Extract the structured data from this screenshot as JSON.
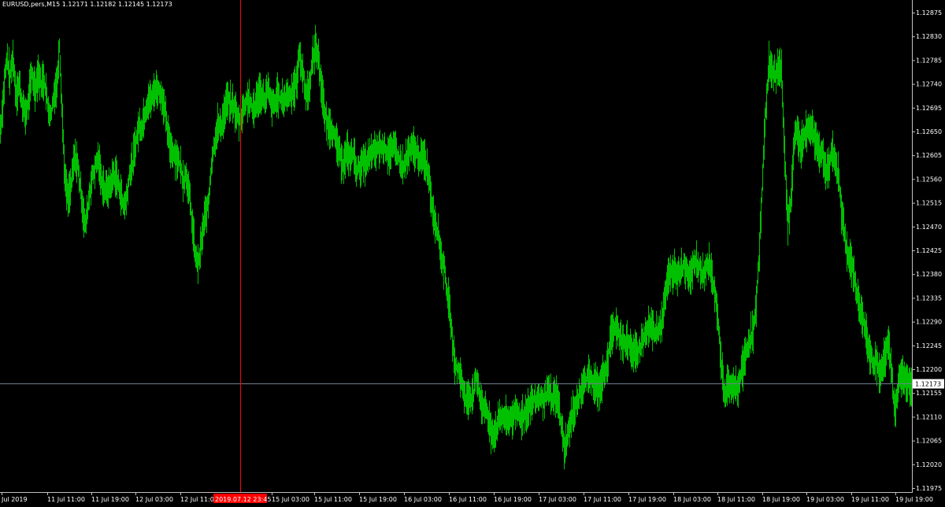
{
  "header": {
    "symbol": "EURUSD,pers,M15",
    "ohlc": "1.12171 1.12182 1.12145 1.12173"
  },
  "colors": {
    "background": "#000000",
    "bars": "#00c000",
    "axis": "#c0c0c0",
    "text": "#ffffff",
    "bid_line": "#708090",
    "crosshair": "#ff0000",
    "cross_label_bg": "#ff0000"
  },
  "chart_data": {
    "type": "line",
    "style": "ohlc-bars",
    "title": "EURUSD,pers,M15",
    "ylim": [
      1.11975,
      1.12898
    ],
    "y_ticks": [
      "1.12875",
      "1.12830",
      "1.12785",
      "1.12740",
      "1.12695",
      "1.12650",
      "1.12605",
      "1.12560",
      "1.12515",
      "1.12470",
      "1.12425",
      "1.12380",
      "1.12335",
      "1.12290",
      "1.12245",
      "1.12200",
      "1.12155",
      "1.12110",
      "1.12065",
      "1.12020",
      "1.11975"
    ],
    "x_ticks": [
      "Jul 2019",
      "11 Jul 11:00",
      "11 Jul 19:00",
      "12 Jul 03:00",
      "12 Jul 11:00",
      "2019.07.12 23:45",
      "15 Jul 03:00",
      "15 Jul 11:00",
      "15 Jul 19:00",
      "16 Jul 03:00",
      "16 Jul 11:00",
      "16 Jul 19:00",
      "17 Jul 03:00",
      "17 Jul 11:00",
      "17 Jul 19:00",
      "18 Jul 03:00",
      "18 Jul 11:00",
      "18 Jul 19:00",
      "19 Jul 03:00",
      "19 Jul 11:00",
      "19 Jul 19:00"
    ],
    "crosshair_label": "2019.07.12 23:45",
    "bid_price": "1.12173",
    "bid_value": 1.12173,
    "series": [
      {
        "values": [
          [
            0,
            1.12655
          ],
          [
            3,
            1.127
          ],
          [
            6,
            1.1276
          ],
          [
            9,
            1.1279
          ],
          [
            12,
            1.1275
          ],
          [
            16,
            1.1279
          ],
          [
            20,
            1.1272
          ],
          [
            24,
            1.1274
          ],
          [
            28,
            1.127
          ],
          [
            32,
            1.1268
          ],
          [
            36,
            1.1271
          ],
          [
            40,
            1.1276
          ],
          [
            44,
            1.1273
          ],
          [
            48,
            1.1276
          ],
          [
            52,
            1.1274
          ],
          [
            56,
            1.1275
          ],
          [
            60,
            1.127
          ],
          [
            64,
            1.1268
          ],
          [
            68,
            1.1272
          ],
          [
            72,
            1.1274
          ],
          [
            75,
            1.1282
          ],
          [
            78,
            1.127
          ],
          [
            82,
            1.1256
          ],
          [
            86,
            1.1252
          ],
          [
            90,
            1.1255
          ],
          [
            94,
            1.126
          ],
          [
            98,
            1.1259
          ],
          [
            102,
            1.1254
          ],
          [
            105,
            1.125
          ],
          [
            108,
            1.1247
          ],
          [
            112,
            1.1252
          ],
          [
            116,
            1.1256
          ],
          [
            120,
            1.1258
          ],
          [
            124,
            1.126
          ],
          [
            128,
            1.1256
          ],
          [
            132,
            1.1254
          ],
          [
            136,
            1.1254
          ],
          [
            140,
            1.1255
          ],
          [
            144,
            1.1257
          ],
          [
            148,
            1.1256
          ],
          [
            152,
            1.1254
          ],
          [
            156,
            1.1251
          ],
          [
            160,
            1.1252
          ],
          [
            164,
            1.1257
          ],
          [
            168,
            1.1259
          ],
          [
            172,
            1.1263
          ],
          [
            176,
            1.1266
          ],
          [
            180,
            1.1266
          ],
          [
            184,
            1.1269
          ],
          [
            188,
            1.1271
          ],
          [
            192,
            1.1271
          ],
          [
            196,
            1.1273
          ],
          [
            200,
            1.1273
          ],
          [
            204,
            1.1272
          ],
          [
            208,
            1.127
          ],
          [
            212,
            1.1265
          ],
          [
            216,
            1.1262
          ],
          [
            220,
            1.1261
          ],
          [
            224,
            1.126
          ],
          [
            228,
            1.1259
          ],
          [
            232,
            1.1256
          ],
          [
            236,
            1.1257
          ],
          [
            240,
            1.1253
          ],
          [
            244,
            1.1247
          ],
          [
            248,
            1.1241
          ],
          [
            252,
            1.124
          ],
          [
            256,
            1.1245
          ],
          [
            260,
            1.1249
          ],
          [
            264,
            1.1251
          ],
          [
            268,
            1.1259
          ],
          [
            272,
            1.1263
          ],
          [
            276,
            1.1266
          ],
          [
            280,
            1.1266
          ],
          [
            284,
            1.1268
          ],
          [
            288,
            1.1271
          ],
          [
            292,
            1.127
          ],
          [
            296,
            1.127
          ],
          [
            300,
            1.1268
          ],
          [
            304,
            1.1267
          ],
          [
            308,
            1.1269
          ],
          [
            312,
            1.1271
          ],
          [
            316,
            1.1271
          ],
          [
            320,
            1.1269
          ],
          [
            324,
            1.127
          ],
          [
            328,
            1.1272
          ],
          [
            332,
            1.1272
          ],
          [
            336,
            1.1271
          ],
          [
            340,
            1.1273
          ],
          [
            344,
            1.127
          ],
          [
            348,
            1.127
          ],
          [
            352,
            1.1272
          ],
          [
            356,
            1.1271
          ],
          [
            360,
            1.1271
          ],
          [
            364,
            1.1272
          ],
          [
            368,
            1.1272
          ],
          [
            372,
            1.1273
          ],
          [
            376,
            1.1274
          ],
          [
            380,
            1.128
          ],
          [
            384,
            1.1276
          ],
          [
            388,
            1.1272
          ],
          [
            392,
            1.1273
          ],
          [
            396,
            1.1278
          ],
          [
            400,
            1.1281
          ],
          [
            404,
            1.1279
          ],
          [
            408,
            1.1273
          ],
          [
            412,
            1.1268
          ],
          [
            416,
            1.1266
          ],
          [
            420,
            1.1266
          ],
          [
            424,
            1.1264
          ],
          [
            428,
            1.1262
          ],
          [
            432,
            1.126
          ],
          [
            436,
            1.1259
          ],
          [
            440,
            1.1261
          ],
          [
            444,
            1.126
          ],
          [
            448,
            1.1261
          ],
          [
            452,
            1.1258
          ],
          [
            456,
            1.1258
          ],
          [
            460,
            1.1259
          ],
          [
            464,
            1.1259
          ],
          [
            468,
            1.126
          ],
          [
            472,
            1.1261
          ],
          [
            476,
            1.1261
          ],
          [
            480,
            1.1262
          ],
          [
            484,
            1.1262
          ],
          [
            488,
            1.1262
          ],
          [
            492,
            1.1261
          ],
          [
            496,
            1.1261
          ],
          [
            500,
            1.1262
          ],
          [
            504,
            1.1261
          ],
          [
            508,
            1.1259
          ],
          [
            512,
            1.1258
          ],
          [
            516,
            1.126
          ],
          [
            520,
            1.1261
          ],
          [
            524,
            1.1262
          ],
          [
            528,
            1.1261
          ],
          [
            532,
            1.126
          ],
          [
            536,
            1.126
          ],
          [
            540,
            1.1259
          ],
          [
            544,
            1.1257
          ],
          [
            548,
            1.1251
          ],
          [
            552,
            1.1248
          ],
          [
            556,
            1.1246
          ],
          [
            560,
            1.1241
          ],
          [
            564,
            1.1239
          ],
          [
            568,
            1.1234
          ],
          [
            572,
            1.1229
          ],
          [
            576,
            1.1222
          ],
          [
            580,
            1.122
          ],
          [
            584,
            1.1219
          ],
          [
            588,
            1.1216
          ],
          [
            592,
            1.1214
          ],
          [
            596,
            1.1215
          ],
          [
            600,
            1.1215
          ],
          [
            604,
            1.1218
          ],
          [
            608,
            1.1216
          ],
          [
            612,
            1.1213
          ],
          [
            616,
            1.1213
          ],
          [
            620,
            1.121
          ],
          [
            624,
            1.1208
          ],
          [
            628,
            1.1208
          ],
          [
            632,
            1.121
          ],
          [
            636,
            1.1211
          ],
          [
            640,
            1.1211
          ],
          [
            644,
            1.121
          ],
          [
            648,
            1.1211
          ],
          [
            652,
            1.1211
          ],
          [
            656,
            1.1212
          ],
          [
            660,
            1.1211
          ],
          [
            664,
            1.1211
          ],
          [
            668,
            1.1212
          ],
          [
            672,
            1.1213
          ],
          [
            676,
            1.1214
          ],
          [
            680,
            1.1214
          ],
          [
            684,
            1.1215
          ],
          [
            688,
            1.1214
          ],
          [
            692,
            1.1215
          ],
          [
            696,
            1.1216
          ],
          [
            700,
            1.1214
          ],
          [
            704,
            1.1215
          ],
          [
            708,
            1.1214
          ],
          [
            712,
            1.121
          ],
          [
            716,
            1.1205
          ],
          [
            720,
            1.1207
          ],
          [
            724,
            1.121
          ],
          [
            728,
            1.1212
          ],
          [
            732,
            1.1214
          ],
          [
            736,
            1.1215
          ],
          [
            740,
            1.1217
          ],
          [
            744,
            1.1218
          ],
          [
            748,
            1.1219
          ],
          [
            752,
            1.1217
          ],
          [
            756,
            1.1217
          ],
          [
            760,
            1.1216
          ],
          [
            764,
            1.1218
          ],
          [
            768,
            1.122
          ],
          [
            772,
            1.1222
          ],
          [
            776,
            1.1227
          ],
          [
            780,
            1.1228
          ],
          [
            784,
            1.1227
          ],
          [
            788,
            1.1226
          ],
          [
            792,
            1.1225
          ],
          [
            796,
            1.1225
          ],
          [
            800,
            1.1224
          ],
          [
            804,
            1.1223
          ],
          [
            808,
            1.1223
          ],
          [
            812,
            1.1224
          ],
          [
            816,
            1.1226
          ],
          [
            820,
            1.1227
          ],
          [
            824,
            1.1228
          ],
          [
            828,
            1.1228
          ],
          [
            832,
            1.1227
          ],
          [
            836,
            1.1228
          ],
          [
            840,
            1.1229
          ],
          [
            844,
            1.1234
          ],
          [
            848,
            1.1237
          ],
          [
            852,
            1.1238
          ],
          [
            856,
            1.1239
          ],
          [
            860,
            1.1238
          ],
          [
            864,
            1.1239
          ],
          [
            868,
            1.124
          ],
          [
            872,
            1.1238
          ],
          [
            876,
            1.1238
          ],
          [
            880,
            1.124
          ],
          [
            884,
            1.124
          ],
          [
            888,
            1.1239
          ],
          [
            892,
            1.1238
          ],
          [
            896,
            1.1239
          ],
          [
            900,
            1.124
          ],
          [
            904,
            1.1237
          ],
          [
            908,
            1.1234
          ],
          [
            912,
            1.1228
          ],
          [
            916,
            1.122
          ],
          [
            920,
            1.1215
          ],
          [
            924,
            1.1217
          ],
          [
            928,
            1.1216
          ],
          [
            932,
            1.1217
          ],
          [
            936,
            1.1216
          ],
          [
            940,
            1.1219
          ],
          [
            944,
            1.1221
          ],
          [
            948,
            1.1224
          ],
          [
            952,
            1.1226
          ],
          [
            956,
            1.1227
          ],
          [
            960,
            1.1232
          ],
          [
            964,
            1.1243
          ],
          [
            968,
            1.1257
          ],
          [
            972,
            1.1269
          ],
          [
            976,
            1.1278
          ],
          [
            980,
            1.1276
          ],
          [
            984,
            1.1276
          ],
          [
            988,
            1.1277
          ],
          [
            992,
            1.1277
          ],
          [
            996,
            1.126
          ],
          [
            1000,
            1.1248
          ],
          [
            1004,
            1.1252
          ],
          [
            1008,
            1.1263
          ],
          [
            1012,
            1.1265
          ],
          [
            1016,
            1.1262
          ],
          [
            1020,
            1.1264
          ],
          [
            1024,
            1.1265
          ],
          [
            1028,
            1.1266
          ],
          [
            1032,
            1.1265
          ],
          [
            1036,
            1.1263
          ],
          [
            1040,
            1.1261
          ],
          [
            1044,
            1.1261
          ],
          [
            1048,
            1.1258
          ],
          [
            1052,
            1.1258
          ],
          [
            1056,
            1.1261
          ],
          [
            1060,
            1.1259
          ],
          [
            1064,
            1.1257
          ],
          [
            1068,
            1.125
          ],
          [
            1072,
            1.1246
          ],
          [
            1076,
            1.1242
          ],
          [
            1080,
            1.124
          ],
          [
            1084,
            1.1238
          ],
          [
            1088,
            1.1234
          ],
          [
            1092,
            1.1231
          ],
          [
            1096,
            1.1229
          ],
          [
            1100,
            1.1226
          ],
          [
            1104,
            1.1223
          ],
          [
            1108,
            1.1221
          ],
          [
            1112,
            1.1222
          ],
          [
            1116,
            1.1219
          ],
          [
            1120,
            1.122
          ],
          [
            1124,
            1.1223
          ],
          [
            1128,
            1.1225
          ],
          [
            1132,
            1.1219
          ],
          [
            1136,
            1.1212
          ],
          [
            1140,
            1.1217
          ],
          [
            1144,
            1.1219
          ],
          [
            1148,
            1.1218
          ],
          [
            1152,
            1.1218
          ],
          [
            1156,
            1.1217
          ],
          [
            1158,
            1.12173
          ]
        ]
      }
    ]
  }
}
